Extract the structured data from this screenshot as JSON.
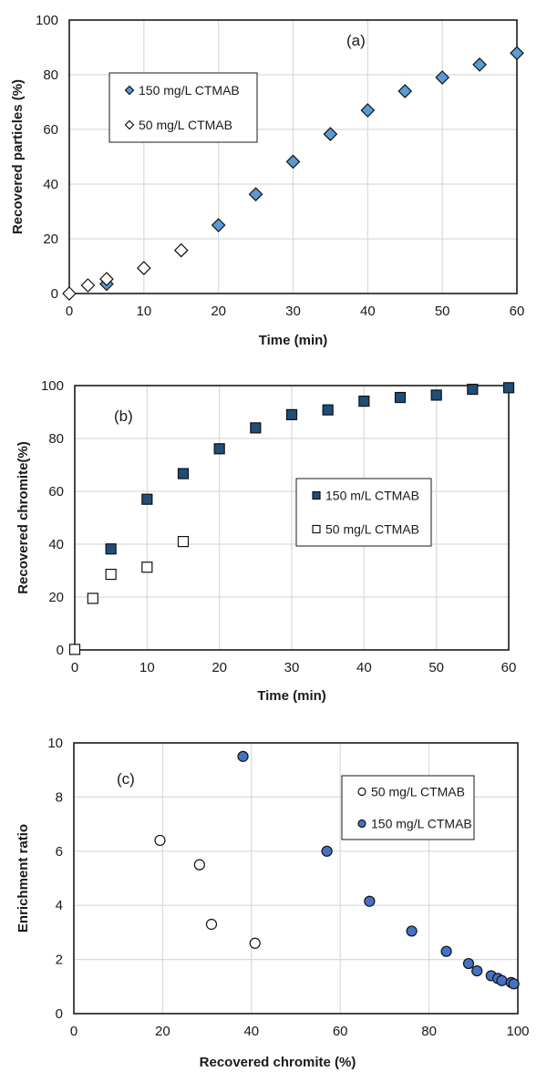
{
  "chart_data": [
    {
      "id": "a",
      "type": "scatter",
      "panel_label": "(a)",
      "xlabel": "Time (min)",
      "ylabel": "Recovered particles (%)",
      "xlim": [
        0,
        60
      ],
      "ylim": [
        0,
        100
      ],
      "xticks": [
        0,
        10,
        20,
        30,
        40,
        50,
        60
      ],
      "yticks": [
        0,
        20,
        40,
        60,
        80,
        100
      ],
      "grid": true,
      "legend_position": "upper-left",
      "series": [
        {
          "name": "150 mg/L CTMAB",
          "marker": "diamond",
          "fill": "#5b9bd5",
          "x": [
            5,
            20,
            25,
            30,
            35,
            40,
            45,
            50,
            55,
            60
          ],
          "y": [
            3.5,
            25,
            36.3,
            48.2,
            58.3,
            67,
            74,
            79,
            83.7,
            87.9
          ]
        },
        {
          "name": "50 mg/L CTMAB",
          "marker": "diamond",
          "fill": "#ffffff",
          "x": [
            0,
            2.5,
            5,
            10,
            15
          ],
          "y": [
            0,
            3,
            5.3,
            9.3,
            15.8
          ]
        }
      ]
    },
    {
      "id": "b",
      "type": "scatter",
      "panel_label": "(b)",
      "xlabel": "Time (min)",
      "ylabel": "Recovered chromite(%)",
      "xlim": [
        0,
        60
      ],
      "ylim": [
        0,
        100
      ],
      "xticks": [
        0,
        10,
        20,
        30,
        40,
        50,
        60
      ],
      "yticks": [
        0,
        20,
        40,
        60,
        80,
        100
      ],
      "grid": true,
      "legend_position": "center-right",
      "series": [
        {
          "name": "150 m/L CTMAB",
          "marker": "square",
          "fill": "#1f4e79",
          "x": [
            5,
            10,
            15,
            20,
            25,
            30,
            35,
            40,
            45,
            50,
            55,
            60
          ],
          "y": [
            38.2,
            57,
            66.7,
            76.1,
            84,
            89,
            90.8,
            94.1,
            95.5,
            96.4,
            98.6,
            99.2
          ]
        },
        {
          "name": "50 mg/L CTMAB",
          "marker": "square",
          "fill": "#ffffff",
          "x": [
            0,
            2.5,
            5,
            10,
            15
          ],
          "y": [
            0.2,
            19.5,
            28.6,
            31.3,
            41
          ]
        }
      ]
    },
    {
      "id": "c",
      "type": "scatter",
      "panel_label": "(c)",
      "xlabel": "Recovered chromite (%)",
      "ylabel": "Enrichment ratio",
      "xlim": [
        0,
        100
      ],
      "ylim": [
        0,
        10
      ],
      "xticks": [
        0,
        20,
        40,
        60,
        80,
        100
      ],
      "yticks": [
        0,
        2,
        4,
        6,
        8,
        10
      ],
      "grid": true,
      "legend_position": "upper-right",
      "series": [
        {
          "name": "50 mg/L CTMAB",
          "marker": "circle",
          "fill": "#ffffff",
          "x": [
            19.4,
            28.3,
            31,
            40.8
          ],
          "y": [
            6.4,
            5.5,
            3.3,
            2.6
          ]
        },
        {
          "name": "150 mg/L CTMAB",
          "marker": "circle",
          "fill": "#4472c4",
          "x": [
            38.1,
            57,
            66.6,
            76.1,
            83.9,
            88.9,
            90.8,
            94,
            95.5,
            96.4,
            98.5,
            99.1
          ],
          "y": [
            9.5,
            6.0,
            4.15,
            3.05,
            2.3,
            1.85,
            1.58,
            1.4,
            1.3,
            1.22,
            1.15,
            1.1
          ]
        }
      ]
    }
  ]
}
